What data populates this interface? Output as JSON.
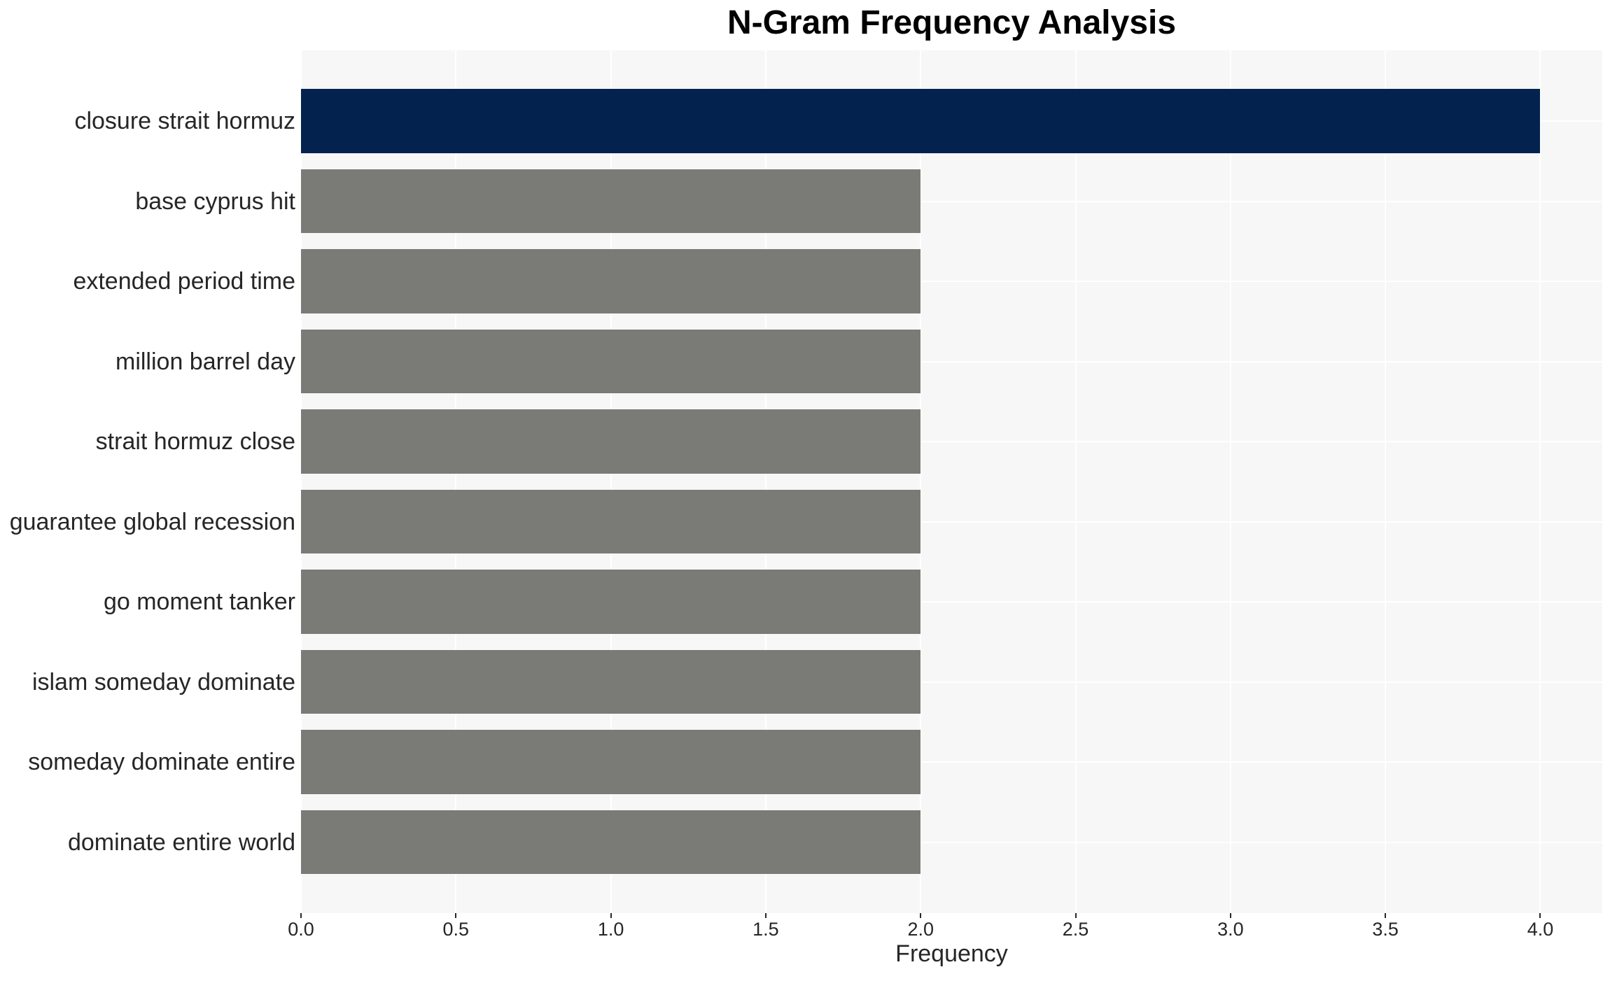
{
  "chart_data": {
    "type": "bar",
    "orientation": "horizontal",
    "title": "N-Gram Frequency Analysis",
    "xlabel": "Frequency",
    "ylabel": "",
    "categories": [
      "closure strait hormuz",
      "base cyprus hit",
      "extended period time",
      "million barrel day",
      "strait hormuz close",
      "guarantee global recession",
      "go moment tanker",
      "islam someday dominate",
      "someday dominate entire",
      "dominate entire world"
    ],
    "values": [
      4,
      2,
      2,
      2,
      2,
      2,
      2,
      2,
      2,
      2
    ],
    "xlim": [
      0,
      4.2
    ],
    "xticks": [
      0.0,
      0.5,
      1.0,
      1.5,
      2.0,
      2.5,
      3.0,
      3.5,
      4.0
    ],
    "xtick_labels": [
      "0.0",
      "0.5",
      "1.0",
      "1.5",
      "2.0",
      "2.5",
      "3.0",
      "3.5",
      "4.0"
    ],
    "grid": "major",
    "legend": "none",
    "colors": {
      "panel_bg": "#f7f7f7",
      "gridline": "#ffffff",
      "bar_default": "#7a7a77",
      "bar_highlight": "#03234e",
      "tick_mark": "#262626",
      "tick_text": "#262626",
      "label_text": "#262626",
      "title_text": "#000000"
    },
    "highlight_index": 0
  }
}
